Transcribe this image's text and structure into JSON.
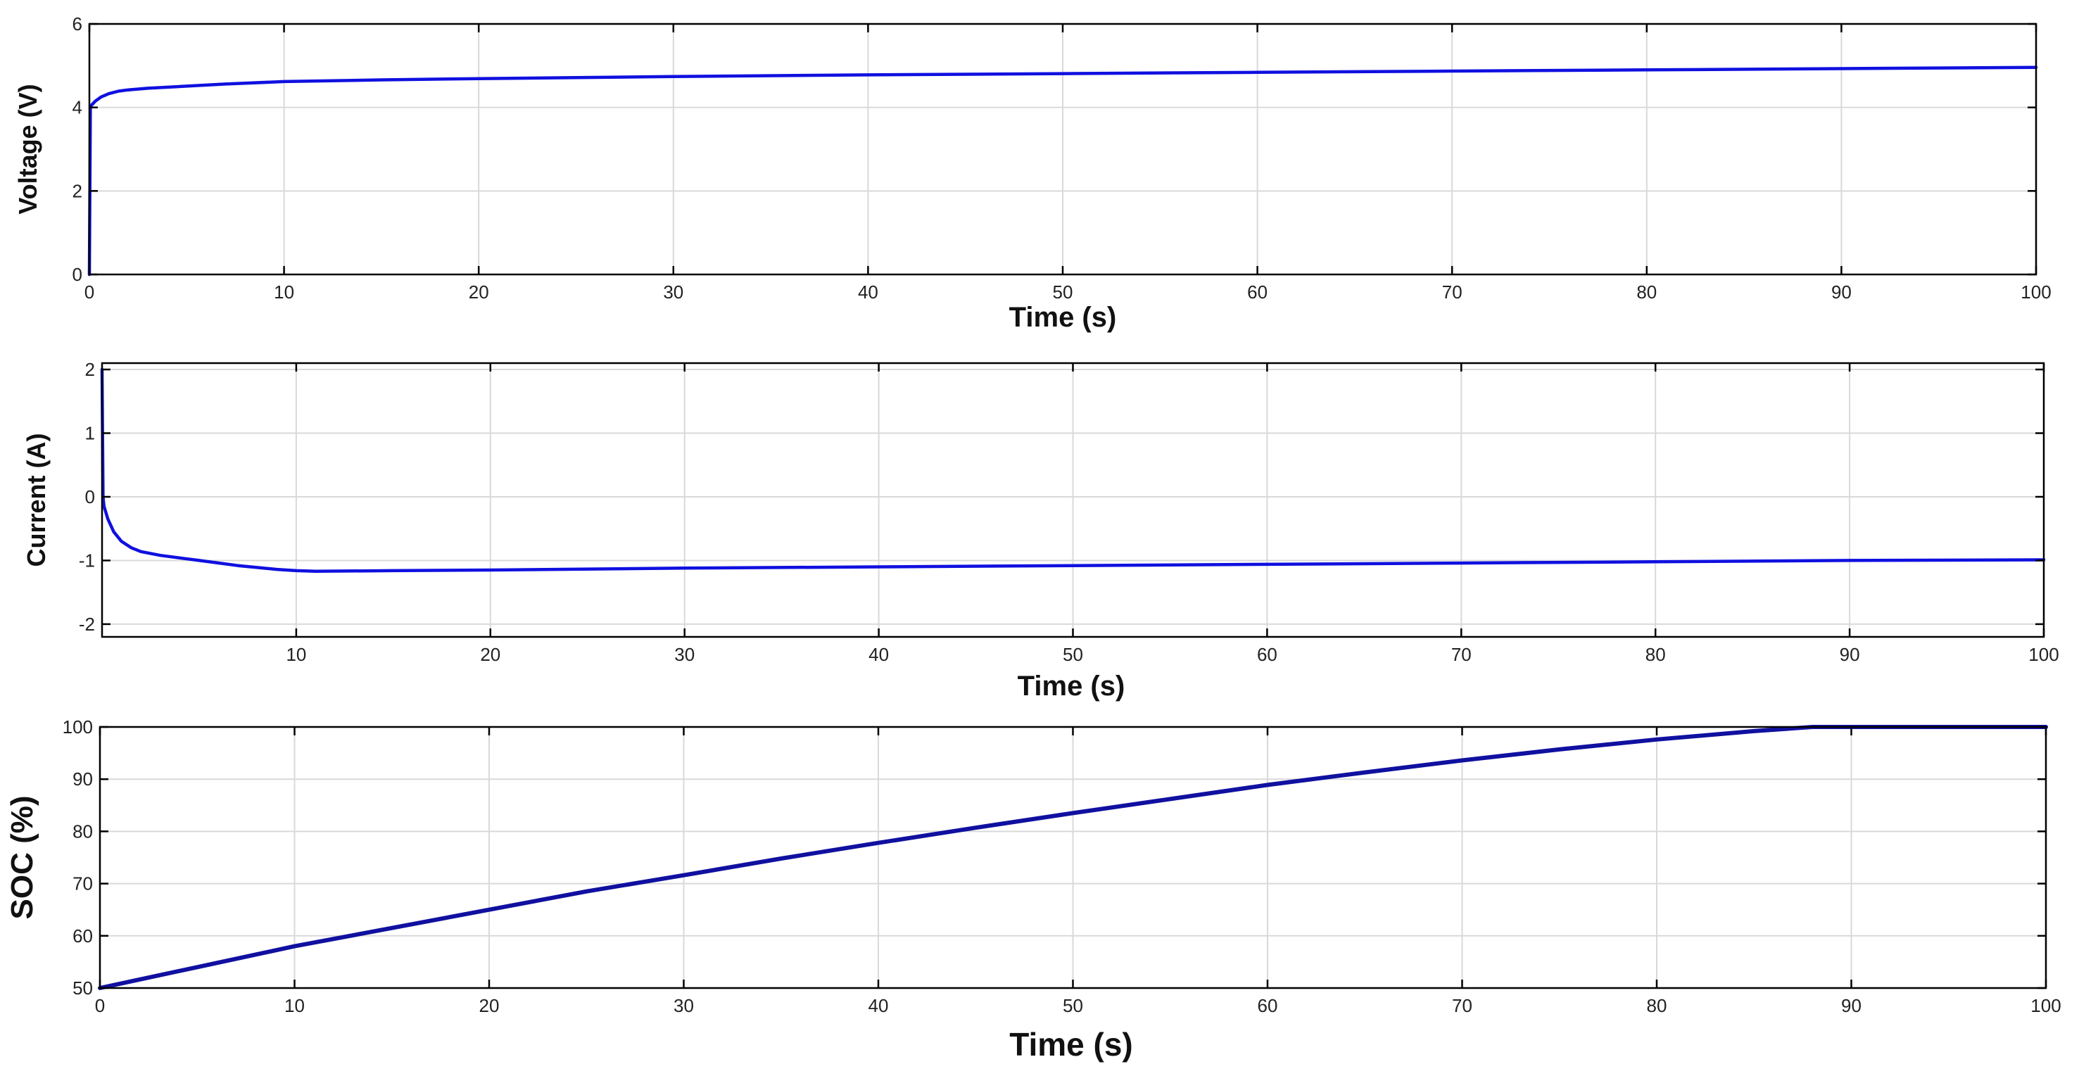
{
  "chart_data": [
    {
      "type": "line",
      "title": "",
      "xlabel": "Time (s)",
      "ylabel": "Voltage (V)",
      "xlim": [
        0,
        100
      ],
      "ylim": [
        0,
        6
      ],
      "x_ticks": [
        0,
        10,
        20,
        30,
        40,
        50,
        60,
        70,
        80,
        90,
        100
      ],
      "y_ticks": [
        0,
        2,
        4,
        6
      ],
      "grid": true,
      "line_color": "#1010e0",
      "series": [
        {
          "x": [
            0,
            0.05,
            0.1,
            0.3,
            0.6,
            1,
            1.5,
            2,
            3,
            5,
            7,
            10,
            15,
            20,
            30,
            40,
            50,
            60,
            70,
            80,
            90,
            100
          ],
          "values": [
            0,
            4.0,
            4.05,
            4.15,
            4.25,
            4.33,
            4.39,
            4.42,
            4.46,
            4.51,
            4.56,
            4.62,
            4.66,
            4.69,
            4.74,
            4.78,
            4.81,
            4.84,
            4.87,
            4.9,
            4.93,
            4.96
          ]
        }
      ]
    },
    {
      "type": "line",
      "title": "",
      "xlabel": "Time (s)",
      "ylabel": "Current (A)",
      "xlim": [
        0,
        100
      ],
      "ylim": [
        -2.2,
        2.1
      ],
      "x_ticks": [
        10,
        20,
        30,
        40,
        50,
        60,
        70,
        80,
        90,
        100
      ],
      "y_ticks": [
        -2,
        -1,
        0,
        1,
        2
      ],
      "grid": true,
      "line_color": "#1010e0",
      "series": [
        {
          "x": [
            0,
            0.05,
            0.1,
            0.3,
            0.6,
            1,
            1.5,
            2,
            3,
            4,
            5,
            7,
            9,
            10,
            11,
            15,
            20,
            30,
            40,
            50,
            60,
            70,
            80,
            90,
            100
          ],
          "values": [
            2.0,
            0.0,
            -0.15,
            -0.35,
            -0.55,
            -0.7,
            -0.8,
            -0.86,
            -0.92,
            -0.96,
            -1.0,
            -1.08,
            -1.14,
            -1.16,
            -1.17,
            -1.16,
            -1.15,
            -1.12,
            -1.1,
            -1.08,
            -1.06,
            -1.04,
            -1.02,
            -1.0,
            -0.99
          ]
        }
      ]
    },
    {
      "type": "line",
      "title": "",
      "xlabel": "Time (s)",
      "ylabel": "SOC (%)",
      "xlim": [
        0,
        100
      ],
      "ylim": [
        50,
        100
      ],
      "x_ticks": [
        0,
        10,
        20,
        30,
        40,
        50,
        60,
        70,
        80,
        90,
        100
      ],
      "y_ticks": [
        50,
        60,
        70,
        80,
        90,
        100
      ],
      "grid": true,
      "line_color": "#1010a0",
      "series": [
        {
          "x": [
            0,
            5,
            10,
            15,
            20,
            25,
            30,
            35,
            40,
            45,
            50,
            55,
            60,
            65,
            70,
            75,
            80,
            85,
            88,
            90,
            100
          ],
          "values": [
            50,
            54,
            58,
            61.5,
            65,
            68.5,
            71.6,
            74.8,
            77.8,
            80.7,
            83.5,
            86.2,
            88.9,
            91.3,
            93.6,
            95.7,
            97.6,
            99.2,
            100,
            100,
            100
          ]
        }
      ]
    }
  ]
}
